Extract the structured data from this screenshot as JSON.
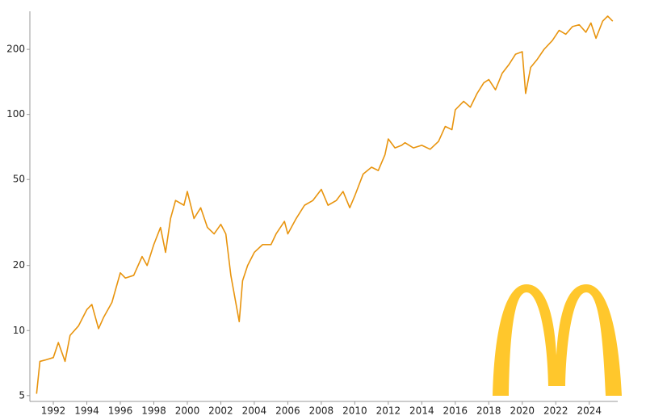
{
  "chart_data": {
    "type": "line",
    "log_scale": true,
    "x": [
      1991.0,
      1991.2,
      1991.5,
      1992.0,
      1992.3,
      1992.7,
      1993.0,
      1993.5,
      1994.0,
      1994.3,
      1994.7,
      1995.0,
      1995.5,
      1996.0,
      1996.3,
      1996.8,
      1997.3,
      1997.6,
      1998.0,
      1998.4,
      1998.7,
      1999.0,
      1999.3,
      1999.8,
      2000.0,
      2000.4,
      2000.8,
      2001.2,
      2001.6,
      2002.0,
      2002.3,
      2002.6,
      2003.1,
      2003.3,
      2003.6,
      2004.0,
      2004.5,
      2005.0,
      2005.3,
      2005.8,
      2006.0,
      2006.5,
      2007.0,
      2007.5,
      2008.0,
      2008.4,
      2008.9,
      2009.3,
      2009.7,
      2010.0,
      2010.5,
      2011.0,
      2011.4,
      2011.8,
      2012.0,
      2012.4,
      2012.8,
      2013.0,
      2013.5,
      2014.0,
      2014.5,
      2015.0,
      2015.4,
      2015.8,
      2016.0,
      2016.5,
      2016.9,
      2017.3,
      2017.7,
      2018.0,
      2018.4,
      2018.8,
      2019.2,
      2019.6,
      2020.0,
      2020.2,
      2020.5,
      2020.9,
      2021.3,
      2021.8,
      2022.2,
      2022.6,
      2023.0,
      2023.4,
      2023.8,
      2024.1,
      2024.4,
      2024.8,
      2025.1,
      2025.4
    ],
    "series": [
      {
        "color": "#e8940e",
        "values": [
          5.1,
          7.2,
          7.3,
          7.5,
          8.8,
          7.2,
          9.5,
          10.5,
          12.5,
          13.2,
          10.2,
          11.5,
          13.5,
          18.5,
          17.5,
          18,
          22,
          20,
          25,
          30,
          23,
          33,
          40,
          38,
          44,
          33,
          37,
          30,
          28,
          31,
          28,
          18,
          11,
          17,
          20,
          23,
          25,
          25,
          28,
          32,
          28,
          33,
          38,
          40,
          45,
          38,
          40,
          44,
          37,
          42,
          53,
          57,
          55,
          65,
          77,
          70,
          72,
          74,
          70,
          72,
          69,
          75,
          88,
          85,
          105,
          115,
          108,
          125,
          140,
          145,
          130,
          155,
          170,
          190,
          195,
          125,
          165,
          180,
          200,
          220,
          245,
          235,
          255,
          260,
          240,
          265,
          225,
          270,
          285,
          270
        ]
      }
    ],
    "xlim": [
      1990.6,
      2025.7
    ],
    "ylim": [
      4.7,
      300
    ],
    "xticks": [
      1992,
      1994,
      1996,
      1998,
      2000,
      2002,
      2004,
      2006,
      2008,
      2010,
      2012,
      2014,
      2016,
      2018,
      2020,
      2022,
      2024
    ],
    "yticks": [
      5,
      10,
      20,
      50,
      100,
      200
    ]
  }
}
